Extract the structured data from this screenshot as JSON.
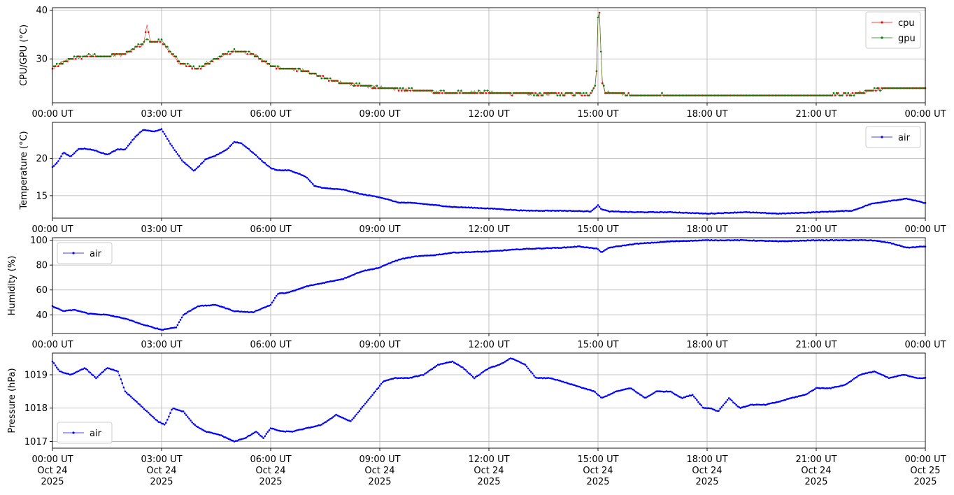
{
  "x_ticks": [
    "00:00 UT",
    "03:00 UT",
    "06:00 UT",
    "09:00 UT",
    "12:00 UT",
    "15:00 UT",
    "18:00 UT",
    "21:00 UT",
    "00:00 UT"
  ],
  "x_date_labels": [
    [
      "Oct 24",
      "2025"
    ],
    [
      "Oct 24",
      "2025"
    ],
    [
      "Oct 24",
      "2025"
    ],
    [
      "Oct 24",
      "2025"
    ],
    [
      "Oct 24",
      "2025"
    ],
    [
      "Oct 24",
      "2025"
    ],
    [
      "Oct 24",
      "2025"
    ],
    [
      "Oct 24",
      "2025"
    ],
    [
      "Oct 25",
      "2025"
    ]
  ],
  "colors": {
    "cpu": "#ff0000",
    "gpu": "#008000",
    "air": "#0000ff",
    "grid": "#b0b0b0"
  },
  "chart_data": [
    {
      "type": "line",
      "ylabel": "CPU/GPU (°C)",
      "ylim": [
        21,
        40.5
      ],
      "yticks": [
        30,
        40
      ],
      "xlim": [
        0,
        24
      ],
      "grid": true,
      "legend_position": "top-right",
      "series": [
        {
          "name": "cpu",
          "color": "#ff0000",
          "x": [
            0,
            0.5,
            1,
            1.5,
            2,
            2.5,
            2.6,
            2.7,
            3,
            3.5,
            4,
            4.5,
            5,
            5.5,
            6,
            6.5,
            7,
            7.5,
            8,
            9,
            10,
            11,
            12,
            13,
            14,
            14.8,
            14.95,
            15.0,
            15.05,
            15.1,
            15.2,
            15.5,
            16,
            17,
            18,
            19,
            20,
            21,
            22,
            22.5,
            23,
            23.5,
            24
          ],
          "y": [
            28,
            30,
            30.5,
            30.5,
            31,
            33,
            37,
            33.5,
            33.5,
            29,
            28,
            30,
            31.5,
            31,
            28.5,
            28,
            27.5,
            26,
            25,
            24,
            23.5,
            23,
            23,
            22.8,
            22.8,
            22.8,
            25,
            38.5,
            39.5,
            26,
            23,
            23,
            22.5,
            22.5,
            22.5,
            22.5,
            22.5,
            22.5,
            22.8,
            23.5,
            24,
            24,
            24
          ]
        },
        {
          "name": "gpu",
          "color": "#008000",
          "x": [
            0,
            0.5,
            1,
            1.5,
            2,
            2.5,
            2.6,
            2.7,
            3,
            3.5,
            4,
            4.5,
            5,
            5.5,
            6,
            6.5,
            7,
            7.5,
            8,
            9,
            10,
            11,
            12,
            13,
            14,
            14.8,
            14.95,
            15.0,
            15.05,
            15.1,
            15.2,
            15.5,
            16,
            17,
            18,
            19,
            20,
            21,
            22,
            22.5,
            23,
            23.5,
            24
          ],
          "y": [
            28.5,
            30,
            30.8,
            30.5,
            31.2,
            33.2,
            34,
            33.5,
            33.8,
            29.2,
            28.2,
            30.2,
            31.8,
            31.2,
            28.6,
            28,
            27.5,
            26,
            25,
            24.2,
            23.6,
            23.2,
            23.2,
            22.8,
            22.8,
            22.8,
            25,
            38.8,
            39.5,
            26,
            23.2,
            23,
            22.6,
            22.6,
            22.6,
            22.5,
            22.5,
            22.5,
            22.8,
            23.6,
            24,
            24,
            24
          ]
        }
      ]
    },
    {
      "type": "line",
      "ylabel": "Temperature (°C)",
      "ylim": [
        12,
        24.8
      ],
      "yticks": [
        15,
        20
      ],
      "xlim": [
        0,
        24
      ],
      "grid": true,
      "legend_position": "top-right",
      "series": [
        {
          "name": "air",
          "color": "#0000ff",
          "x": [
            0,
            0.15,
            0.3,
            0.5,
            0.7,
            0.9,
            1.2,
            1.5,
            1.8,
            2.0,
            2.3,
            2.5,
            2.8,
            3.0,
            3.3,
            3.6,
            3.9,
            4.2,
            4.5,
            4.8,
            5.0,
            5.2,
            5.5,
            5.8,
            6.0,
            6.2,
            6.5,
            6.8,
            7.0,
            7.2,
            7.5,
            8,
            8.5,
            9,
            9.5,
            10,
            11,
            12,
            13,
            14,
            14.8,
            15.0,
            15.1,
            15.3,
            16,
            17,
            18,
            19,
            20,
            21,
            22,
            22.5,
            23,
            23.5,
            24
          ],
          "y": [
            18.8,
            19.5,
            20.8,
            20.2,
            21.2,
            21.3,
            21.0,
            20.5,
            21.2,
            21.2,
            23.0,
            23.8,
            23.6,
            23.9,
            21.5,
            19.5,
            18.3,
            19.8,
            20.4,
            21.2,
            22.2,
            22.0,
            20.8,
            19.5,
            18.7,
            18.4,
            18.4,
            17.9,
            17.4,
            16.3,
            16.0,
            15.8,
            15.2,
            14.8,
            14.1,
            14.0,
            13.5,
            13.3,
            13.0,
            13.0,
            12.9,
            13.7,
            13.2,
            12.9,
            12.8,
            12.8,
            12.6,
            12.8,
            12.6,
            12.8,
            13.0,
            13.9,
            14.3,
            14.6,
            14.0
          ]
        }
      ]
    },
    {
      "type": "line",
      "ylabel": "Humidity (%)",
      "ylim": [
        25,
        102
      ],
      "yticks": [
        40,
        60,
        80,
        100
      ],
      "xlim": [
        0,
        24
      ],
      "grid": true,
      "legend_position": "top-left",
      "series": [
        {
          "name": "air",
          "color": "#0000ff",
          "x": [
            0,
            0.3,
            0.6,
            1,
            1.5,
            2,
            2.5,
            3.0,
            3.4,
            3.6,
            4.0,
            4.5,
            5.0,
            5.5,
            6.0,
            6.2,
            6.5,
            7.0,
            7.5,
            8.0,
            8.5,
            9.0,
            9.3,
            9.6,
            10,
            10.5,
            11,
            12,
            13,
            14,
            14.5,
            15.0,
            15.1,
            15.3,
            16,
            17,
            18,
            19,
            20,
            21,
            22,
            22.5,
            23,
            23.5,
            24
          ],
          "y": [
            47,
            43,
            44,
            41,
            40,
            37,
            32,
            28,
            30,
            40,
            47,
            48,
            43,
            42,
            48,
            57,
            58,
            63,
            66,
            69,
            75,
            78,
            82,
            85,
            87,
            88,
            90,
            91,
            93,
            94,
            95,
            93,
            90,
            94,
            97,
            99,
            100,
            100,
            99,
            100,
            100,
            100,
            98,
            94,
            95
          ]
        }
      ]
    },
    {
      "type": "line",
      "ylabel": "Pressure (hPa)",
      "ylim": [
        1016.8,
        1019.65
      ],
      "yticks": [
        1017,
        1018,
        1019
      ],
      "xlim": [
        0,
        24
      ],
      "grid": true,
      "legend_position": "bottom-left",
      "series": [
        {
          "name": "air",
          "color": "#0000ff",
          "x": [
            0,
            0.2,
            0.5,
            0.9,
            1.2,
            1.5,
            1.8,
            2.0,
            2.3,
            2.6,
            2.9,
            3.1,
            3.3,
            3.6,
            3.9,
            4.2,
            4.6,
            5.0,
            5.3,
            5.6,
            5.8,
            6.0,
            6.3,
            6.6,
            7.0,
            7.4,
            7.8,
            8.2,
            8.5,
            8.8,
            9.1,
            9.4,
            9.8,
            10.2,
            10.6,
            11.0,
            11.3,
            11.6,
            12.0,
            12.3,
            12.6,
            12.8,
            13.0,
            13.3,
            13.7,
            14.0,
            14.3,
            14.6,
            14.9,
            15.1,
            15.5,
            15.9,
            16.3,
            16.6,
            17.0,
            17.3,
            17.6,
            17.9,
            18.1,
            18.3,
            18.6,
            18.9,
            19.2,
            19.6,
            20.0,
            20.3,
            20.7,
            21.0,
            21.4,
            21.8,
            22.2,
            22.6,
            23.0,
            23.4,
            23.8,
            24
          ],
          "y": [
            1019.4,
            1019.1,
            1019.0,
            1019.2,
            1018.9,
            1019.2,
            1019.1,
            1018.5,
            1018.2,
            1017.9,
            1017.6,
            1017.5,
            1018.0,
            1017.9,
            1017.5,
            1017.3,
            1017.2,
            1017.0,
            1017.1,
            1017.3,
            1017.1,
            1017.4,
            1017.3,
            1017.3,
            1017.4,
            1017.5,
            1017.8,
            1017.6,
            1018.0,
            1018.4,
            1018.8,
            1018.9,
            1018.9,
            1019.0,
            1019.3,
            1019.4,
            1019.2,
            1018.9,
            1019.2,
            1019.3,
            1019.5,
            1019.4,
            1019.3,
            1018.9,
            1018.9,
            1018.8,
            1018.7,
            1018.6,
            1018.5,
            1018.3,
            1018.5,
            1018.6,
            1018.3,
            1018.5,
            1018.5,
            1018.3,
            1018.4,
            1018.0,
            1018.0,
            1017.9,
            1018.3,
            1018.0,
            1018.1,
            1018.1,
            1018.2,
            1018.3,
            1018.4,
            1018.6,
            1018.6,
            1018.7,
            1019.0,
            1019.1,
            1018.9,
            1019.0,
            1018.9,
            1018.9
          ]
        }
      ]
    }
  ]
}
